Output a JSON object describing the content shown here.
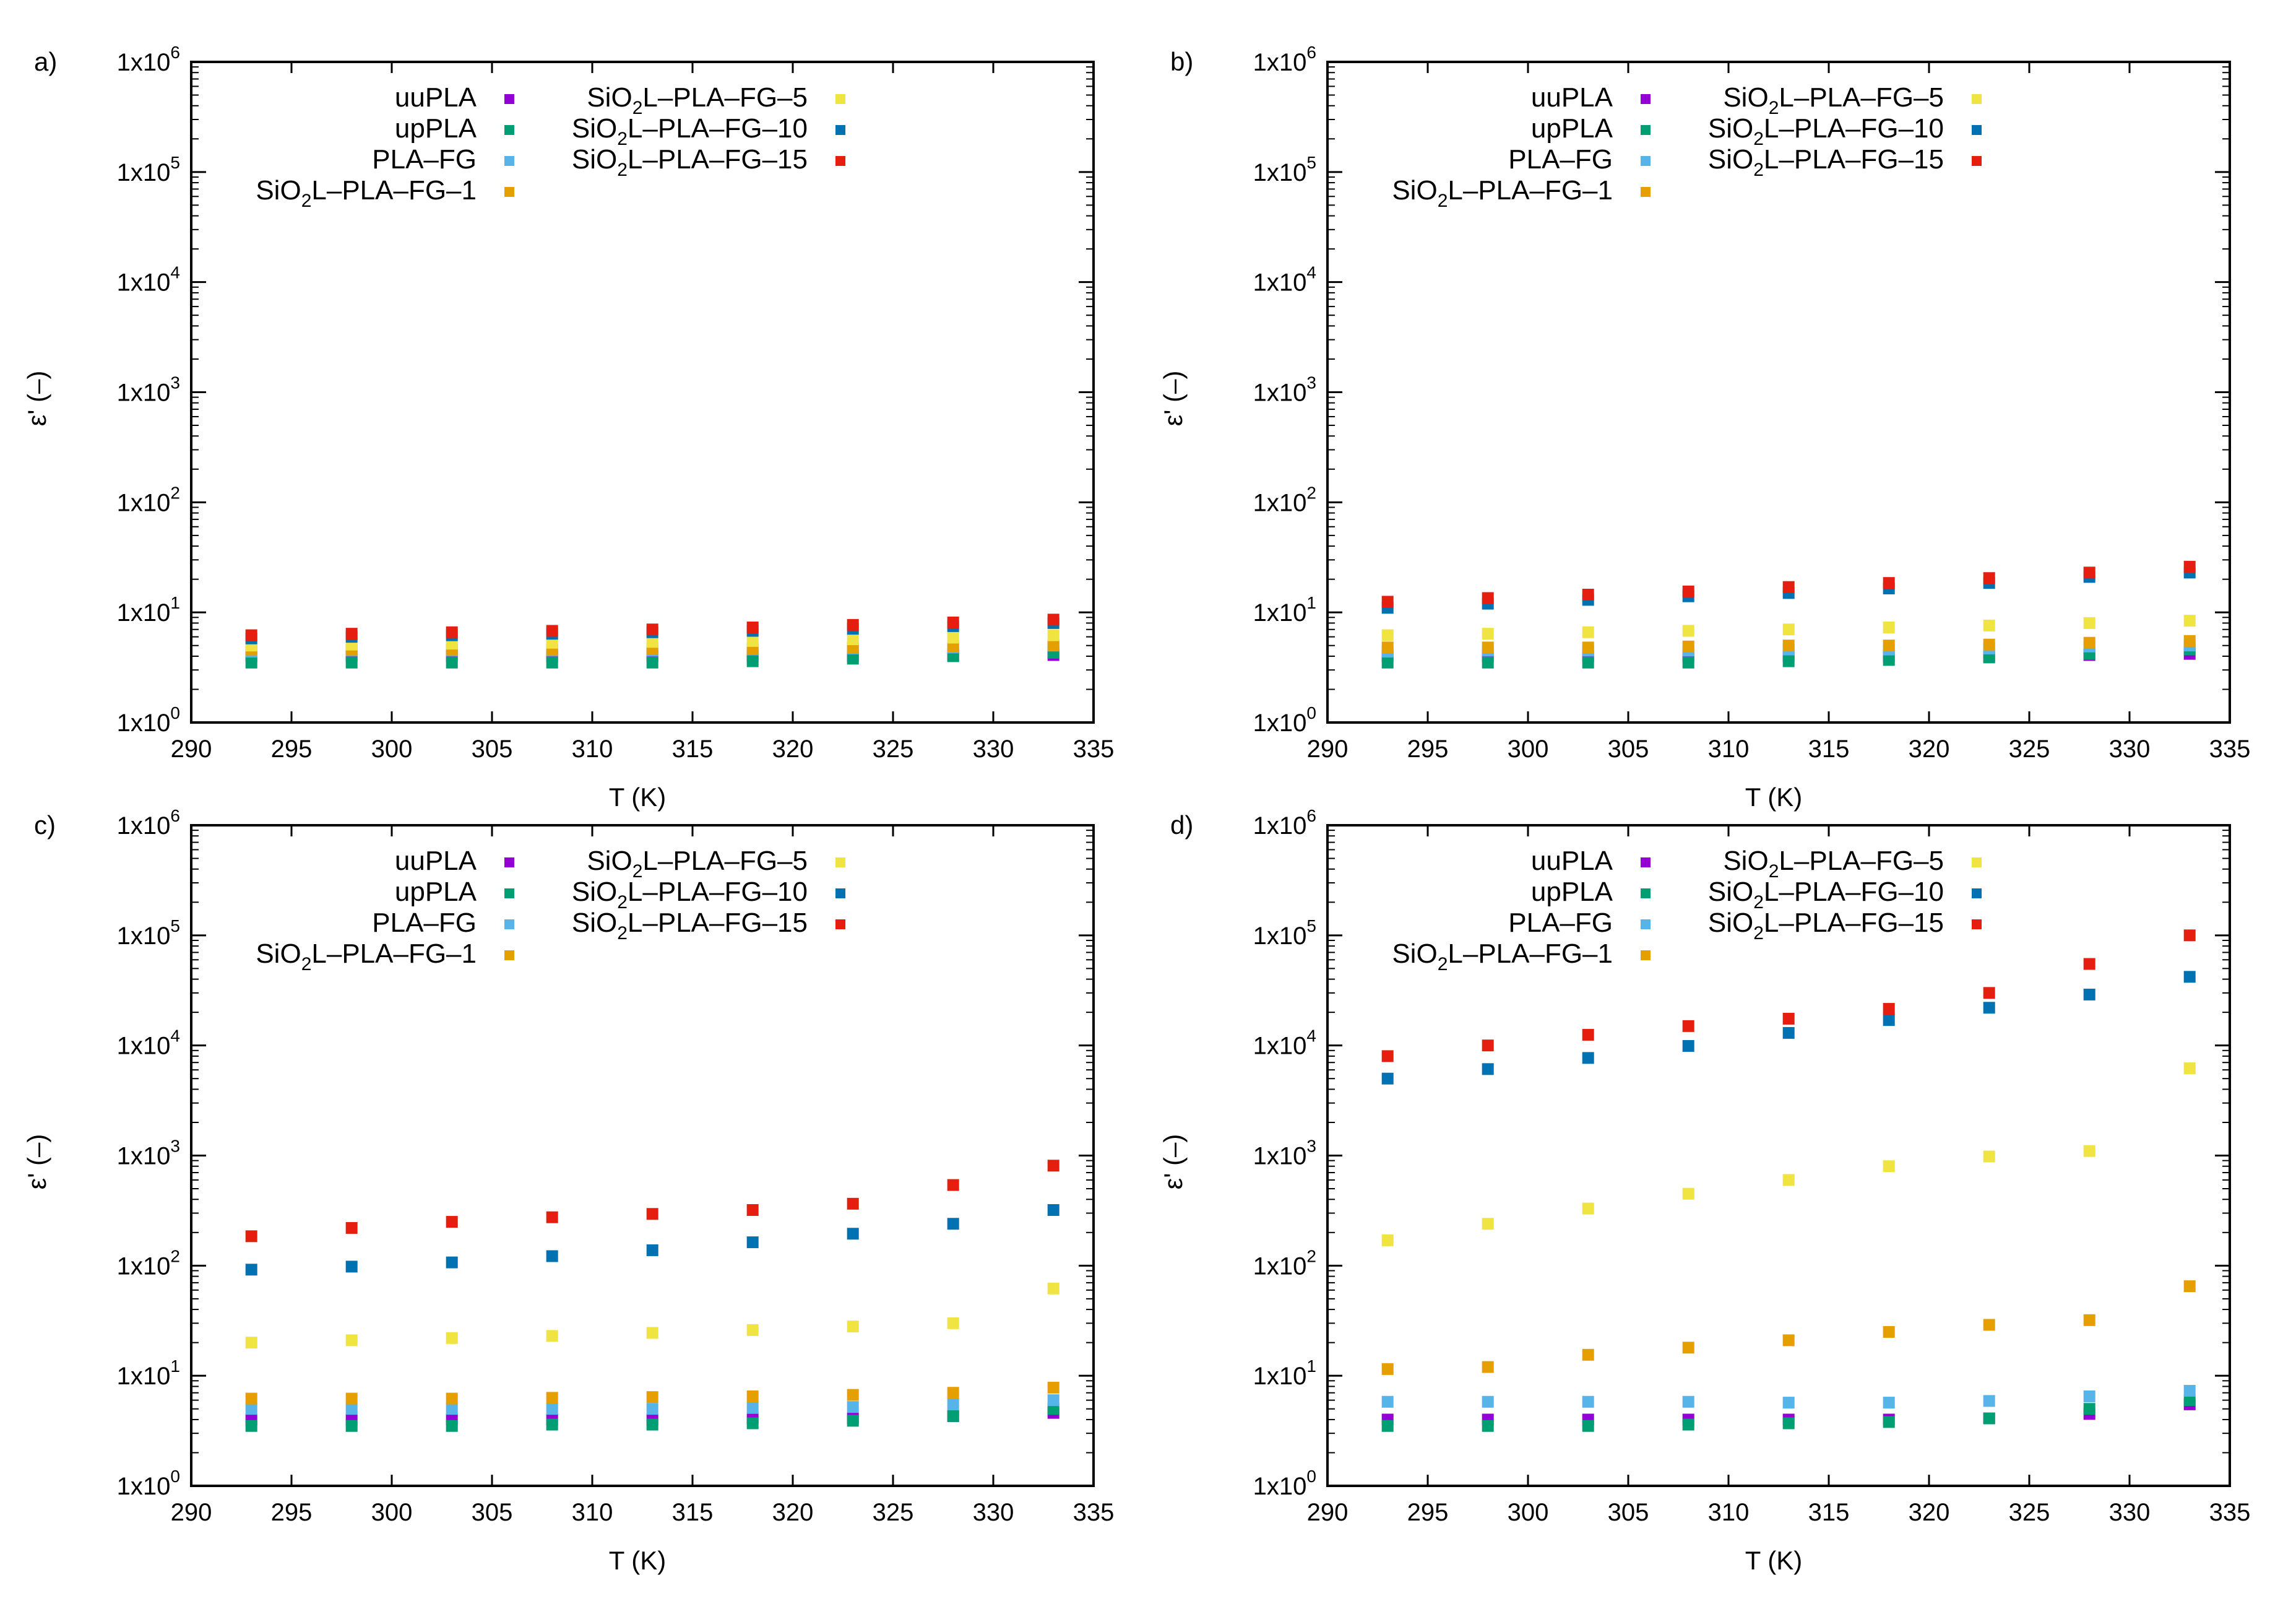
{
  "chart_data": [
    {
      "type": "scatter",
      "panel_label": "a)",
      "xlabel": "T (K)",
      "ylabel": "ε' (–)",
      "xlim": [
        290,
        335
      ],
      "ylim": [
        1,
        1000000
      ],
      "yscale": "log",
      "xticks": [
        "290",
        "295",
        "300",
        "305",
        "310",
        "315",
        "320",
        "325",
        "330",
        "335"
      ],
      "yticks": [
        {
          "base": "1x10",
          "exp": "0"
        },
        {
          "base": "1x10",
          "exp": "1"
        },
        {
          "base": "1x10",
          "exp": "2"
        },
        {
          "base": "1x10",
          "exp": "3"
        },
        {
          "base": "1x10",
          "exp": "4"
        },
        {
          "base": "1x10",
          "exp": "5"
        },
        {
          "base": "1x10",
          "exp": "6"
        }
      ],
      "x": [
        293,
        298,
        303,
        308,
        313,
        318,
        323,
        328,
        333
      ],
      "series": [
        {
          "name": "uuPLA",
          "values": [
            4.0,
            4.0,
            4.0,
            4.0,
            4.0,
            4.0,
            4.0,
            4.1,
            4.1
          ]
        },
        {
          "name": "upPLA",
          "values": [
            3.5,
            3.5,
            3.5,
            3.5,
            3.5,
            3.6,
            3.8,
            4.0,
            4.3
          ]
        },
        {
          "name": "PLA–FG",
          "values": [
            4.4,
            4.5,
            4.5,
            4.5,
            4.5,
            4.6,
            4.7,
            4.8,
            5.0
          ]
        },
        {
          "name": "SiO2L–PLA–FG–1",
          "values": [
            4.6,
            4.6,
            4.6,
            4.6,
            4.7,
            4.7,
            4.8,
            4.9,
            5.0
          ]
        },
        {
          "name": "SiO2L–PLA–FG–5",
          "values": [
            5.0,
            5.1,
            5.2,
            5.3,
            5.4,
            5.5,
            5.7,
            5.9,
            6.2
          ]
        },
        {
          "name": "SiO2L–PLA–FG–10",
          "values": [
            5.8,
            6.0,
            6.2,
            6.4,
            6.6,
            6.8,
            7.1,
            7.5,
            8.0
          ]
        },
        {
          "name": "SiO2L–PLA–FG–15",
          "values": [
            6.2,
            6.4,
            6.6,
            6.8,
            7.0,
            7.3,
            7.7,
            8.1,
            8.6
          ]
        }
      ],
      "legend": {
        "location": "top-left",
        "entries": [
          {
            "text": "uuPLA"
          },
          {
            "text": "upPLA"
          },
          {
            "text": "PLA–FG"
          },
          {
            "text": "SiO",
            "sub": "2",
            "rest": "L–PLA–FG–1"
          },
          {
            "text": "SiO",
            "sub": "2",
            "rest": "L–PLA–FG–5"
          },
          {
            "text": "SiO",
            "sub": "2",
            "rest": "L–PLA–FG–10"
          },
          {
            "text": "SiO",
            "sub": "2",
            "rest": "L–PLA–FG–15"
          }
        ]
      }
    },
    {
      "type": "scatter",
      "panel_label": "b)",
      "xlabel": "T (K)",
      "ylabel": "ε' (–)",
      "xlim": [
        290,
        335
      ],
      "ylim": [
        1,
        1000000
      ],
      "yscale": "log",
      "xticks": [
        "290",
        "295",
        "300",
        "305",
        "310",
        "315",
        "320",
        "325",
        "330",
        "335"
      ],
      "yticks": [
        {
          "base": "1x10",
          "exp": "0"
        },
        {
          "base": "1x10",
          "exp": "1"
        },
        {
          "base": "1x10",
          "exp": "2"
        },
        {
          "base": "1x10",
          "exp": "3"
        },
        {
          "base": "1x10",
          "exp": "4"
        },
        {
          "base": "1x10",
          "exp": "5"
        },
        {
          "base": "1x10",
          "exp": "6"
        }
      ],
      "x": [
        293,
        298,
        303,
        308,
        313,
        318,
        323,
        328,
        333
      ],
      "series": [
        {
          "name": "uuPLA",
          "values": [
            4.0,
            4.0,
            4.0,
            4.0,
            4.0,
            4.0,
            4.0,
            4.1,
            4.2
          ]
        },
        {
          "name": "upPLA",
          "values": [
            3.5,
            3.5,
            3.5,
            3.5,
            3.6,
            3.7,
            3.9,
            4.2,
            4.6
          ]
        },
        {
          "name": "PLA–FG",
          "values": [
            4.4,
            4.5,
            4.5,
            4.5,
            4.6,
            4.6,
            4.7,
            4.9,
            5.0
          ]
        },
        {
          "name": "SiO2L–PLA–FG–1",
          "values": [
            4.8,
            4.8,
            4.8,
            4.9,
            5.0,
            5.0,
            5.1,
            5.3,
            5.5
          ]
        },
        {
          "name": "SiO2L–PLA–FG–5",
          "values": [
            6.2,
            6.4,
            6.6,
            6.8,
            7.0,
            7.3,
            7.6,
            8.0,
            8.4
          ]
        },
        {
          "name": "SiO2L–PLA–FG–10",
          "values": [
            11,
            12,
            13,
            14,
            15,
            16.5,
            18.5,
            21,
            23
          ]
        },
        {
          "name": "SiO2L–PLA–FG–15",
          "values": [
            12.5,
            13.5,
            14.5,
            15.5,
            17,
            18.5,
            20.5,
            23,
            26
          ]
        }
      ],
      "legend": {
        "location": "top-left",
        "entries": [
          {
            "text": "uuPLA"
          },
          {
            "text": "upPLA"
          },
          {
            "text": "PLA–FG"
          },
          {
            "text": "SiO",
            "sub": "2",
            "rest": "L–PLA–FG–1"
          },
          {
            "text": "SiO",
            "sub": "2",
            "rest": "L–PLA–FG–5"
          },
          {
            "text": "SiO",
            "sub": "2",
            "rest": "L–PLA–FG–10"
          },
          {
            "text": "SiO",
            "sub": "2",
            "rest": "L–PLA–FG–15"
          }
        ]
      }
    },
    {
      "type": "scatter",
      "panel_label": "c)",
      "xlabel": "T (K)",
      "ylabel": "ε' (–)",
      "xlim": [
        290,
        335
      ],
      "ylim": [
        1,
        1000000
      ],
      "yscale": "log",
      "xticks": [
        "290",
        "295",
        "300",
        "305",
        "310",
        "315",
        "320",
        "325",
        "330",
        "335"
      ],
      "yticks": [
        {
          "base": "1x10",
          "exp": "0"
        },
        {
          "base": "1x10",
          "exp": "1"
        },
        {
          "base": "1x10",
          "exp": "2"
        },
        {
          "base": "1x10",
          "exp": "3"
        },
        {
          "base": "1x10",
          "exp": "4"
        },
        {
          "base": "1x10",
          "exp": "5"
        },
        {
          "base": "1x10",
          "exp": "6"
        }
      ],
      "x": [
        293,
        298,
        303,
        308,
        313,
        318,
        323,
        328,
        333
      ],
      "series": [
        {
          "name": "uuPLA",
          "values": [
            4.0,
            4.0,
            4.0,
            4.0,
            4.0,
            4.1,
            4.1,
            4.3,
            4.6
          ]
        },
        {
          "name": "upPLA",
          "values": [
            3.5,
            3.5,
            3.5,
            3.6,
            3.6,
            3.7,
            3.9,
            4.3,
            5.0
          ]
        },
        {
          "name": "PLA–FG",
          "values": [
            5.0,
            5.0,
            5.0,
            5.0,
            5.0,
            5.1,
            5.2,
            5.5,
            6.0
          ]
        },
        {
          "name": "SiO2L–PLA–FG–1",
          "values": [
            6.2,
            6.2,
            6.2,
            6.3,
            6.4,
            6.5,
            6.7,
            7.0,
            7.8
          ]
        },
        {
          "name": "SiO2L–PLA–FG–5",
          "values": [
            20,
            21,
            22,
            23,
            24.5,
            26,
            28,
            30,
            62
          ]
        },
        {
          "name": "SiO2L–PLA–FG–10",
          "values": [
            92,
            98,
            107,
            122,
            138,
            163,
            195,
            240,
            320
          ]
        },
        {
          "name": "SiO2L–PLA–FG–15",
          "values": [
            185,
            220,
            250,
            275,
            295,
            320,
            365,
            540,
            810
          ]
        }
      ],
      "legend": {
        "location": "top-left",
        "entries": [
          {
            "text": "uuPLA"
          },
          {
            "text": "upPLA"
          },
          {
            "text": "PLA–FG"
          },
          {
            "text": "SiO",
            "sub": "2",
            "rest": "L–PLA–FG–1"
          },
          {
            "text": "SiO",
            "sub": "2",
            "rest": "L–PLA–FG–5"
          },
          {
            "text": "SiO",
            "sub": "2",
            "rest": "L–PLA–FG–10"
          },
          {
            "text": "SiO",
            "sub": "2",
            "rest": "L–PLA–FG–15"
          }
        ]
      }
    },
    {
      "type": "scatter",
      "panel_label": "d)",
      "xlabel": "T (K)",
      "ylabel": "ε' (–)",
      "xlim": [
        290,
        335
      ],
      "ylim": [
        1,
        1000000
      ],
      "yscale": "log",
      "xticks": [
        "290",
        "295",
        "300",
        "305",
        "310",
        "315",
        "320",
        "325",
        "330",
        "335"
      ],
      "yticks": [
        {
          "base": "1x10",
          "exp": "0"
        },
        {
          "base": "1x10",
          "exp": "1"
        },
        {
          "base": "1x10",
          "exp": "2"
        },
        {
          "base": "1x10",
          "exp": "3"
        },
        {
          "base": "1x10",
          "exp": "4"
        },
        {
          "base": "1x10",
          "exp": "5"
        },
        {
          "base": "1x10",
          "exp": "6"
        }
      ],
      "x": [
        293,
        298,
        303,
        308,
        313,
        318,
        323,
        328,
        333
      ],
      "series": [
        {
          "name": "uuPLA",
          "values": [
            4.0,
            4.0,
            4.0,
            4.0,
            4.0,
            4.0,
            4.1,
            4.5,
            5.5
          ]
        },
        {
          "name": "upPLA",
          "values": [
            3.5,
            3.5,
            3.5,
            3.6,
            3.7,
            3.8,
            4.1,
            5.0,
            6.0
          ]
        },
        {
          "name": "PLA–FG",
          "values": [
            5.8,
            5.8,
            5.8,
            5.8,
            5.7,
            5.7,
            5.9,
            6.5,
            7.3
          ]
        },
        {
          "name": "SiO2L–PLA–FG–1",
          "values": [
            11.5,
            12,
            15.5,
            18,
            21,
            25,
            29,
            32,
            65
          ]
        },
        {
          "name": "SiO2L–PLA–FG–5",
          "values": [
            170,
            240,
            330,
            450,
            600,
            800,
            980,
            1100,
            6200
          ]
        },
        {
          "name": "SiO2L–PLA–FG–10",
          "values": [
            5000,
            6100,
            7700,
            9900,
            13000,
            17000,
            22000,
            29000,
            42000
          ]
        },
        {
          "name": "SiO2L–PLA–FG–15",
          "values": [
            8000,
            10000,
            12500,
            15000,
            17500,
            21500,
            30000,
            55000,
            100000
          ]
        }
      ],
      "legend": {
        "location": "top-left",
        "entries": [
          {
            "text": "uuPLA"
          },
          {
            "text": "upPLA"
          },
          {
            "text": "PLA–FG"
          },
          {
            "text": "SiO",
            "sub": "2",
            "rest": "L–PLA–FG–1"
          },
          {
            "text": "SiO",
            "sub": "2",
            "rest": "L–PLA–FG–5"
          },
          {
            "text": "SiO",
            "sub": "2",
            "rest": "L–PLA–FG–10"
          },
          {
            "text": "SiO",
            "sub": "2",
            "rest": "L–PLA–FG–15"
          }
        ]
      }
    }
  ],
  "colors": {
    "uuPLA": "#9400d3",
    "upPLA": "#009e73",
    "PLA–FG": "#56b4e9",
    "SiO2L–PLA–FG–1": "#e69f00",
    "SiO2L–PLA–FG–5": "#f0e442",
    "SiO2L–PLA–FG–10": "#0072b2",
    "SiO2L–PLA–FG–15": "#e51e10"
  }
}
